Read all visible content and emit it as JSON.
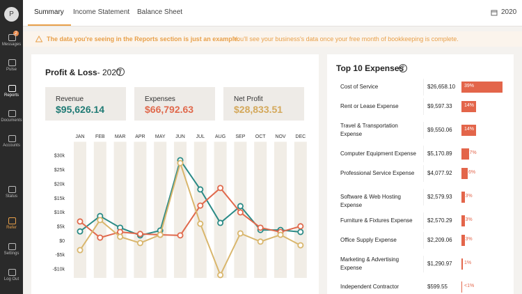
{
  "sidebar": {
    "avatar": "P",
    "messages_badge": 2,
    "items": [
      "Messages",
      "Pulse",
      "Reports",
      "Documents",
      "Accounts",
      "Status",
      "Refer",
      "Settings",
      "Log Out"
    ]
  },
  "tabs": [
    "Summary",
    "Income Statement",
    "Balance Sheet"
  ],
  "year": "2020",
  "banner": {
    "bold": "The data you're seeing in the Reports section is just an example.",
    "text": "You'll see your business's data once your free month of bookkeeping is complete."
  },
  "profit_loss": {
    "title": "Profit & Loss",
    "year": "- 2020",
    "totals": [
      "$95,626.14",
      "$66,792.63",
      "$28,833.51"
    ]
  },
  "chart_data": {
    "type": "line",
    "categories": [
      "JAN",
      "FEB",
      "MAR",
      "APR",
      "MAY",
      "JUN",
      "JUL",
      "AUG",
      "SEP",
      "OCT",
      "NOV",
      "DEC"
    ],
    "series": [
      {
        "name": "Revenue",
        "color": "#2a8a86",
        "values": [
          3400,
          8800,
          4700,
          2000,
          3700,
          28500,
          18200,
          6400,
          12300,
          3900,
          3900,
          3200
        ]
      },
      {
        "name": "Expenses",
        "color": "#e0694c",
        "values": [
          6900,
          1200,
          3200,
          2500,
          2200,
          2000,
          12500,
          18700,
          10100,
          4700,
          3200,
          5200
        ]
      },
      {
        "name": "Net Profit",
        "color": "#d9b66c",
        "values": [
          -3200,
          7400,
          1500,
          -700,
          2200,
          27500,
          6100,
          -12000,
          2700,
          -200,
          2200,
          -1500
        ]
      }
    ],
    "ylim": [
      -13000,
      35000
    ],
    "yticks": [
      {
        "value": 30000,
        "label": "$30k"
      },
      {
        "value": 25000,
        "label": "$25k"
      },
      {
        "value": 20000,
        "label": "$20k"
      },
      {
        "value": 15000,
        "label": "$15k"
      },
      {
        "value": 10000,
        "label": "$10k"
      },
      {
        "value": 5000,
        "label": "$5k"
      },
      {
        "value": 0,
        "label": "$0"
      },
      {
        "value": -5000,
        "label": "-$5k"
      },
      {
        "value": -10000,
        "label": "-$10k"
      }
    ]
  },
  "top_expenses": {
    "title": "Top 10 Expenses",
    "rows": [
      {
        "name": "Cost of Service",
        "amount": "$26,658.10",
        "share": 39,
        "share_label": "39%"
      },
      {
        "name": "Rent or Lease Expense",
        "amount": "$9,597.33",
        "share": 14,
        "share_label": "14%"
      },
      {
        "name": "Travel & Transportation Expense",
        "amount": "$9,550.06",
        "share": 14,
        "share_label": "14%"
      },
      {
        "name": "Computer Equipment Expense",
        "amount": "$5,170.89",
        "share": 7,
        "share_label": "7%"
      },
      {
        "name": "Professional Service Expense",
        "amount": "$4,077.92",
        "share": 6,
        "share_label": "6%"
      },
      {
        "name": "Software & Web Hosting Expense",
        "amount": "$2,579.93",
        "share": 3,
        "share_label": "3%"
      },
      {
        "name": "Furniture & Fixtures Expense",
        "amount": "$2,570.29",
        "share": 3,
        "share_label": "3%"
      },
      {
        "name": "Office Supply Expense",
        "amount": "$2,209.06",
        "share": 3,
        "share_label": "3%"
      },
      {
        "name": "Marketing & Advertising Expense",
        "amount": "$1,290.97",
        "share": 1,
        "share_label": "1%"
      },
      {
        "name": "Independent Contractor",
        "amount": "$599.55",
        "share": 0.5,
        "share_label": "<1%"
      }
    ]
  }
}
